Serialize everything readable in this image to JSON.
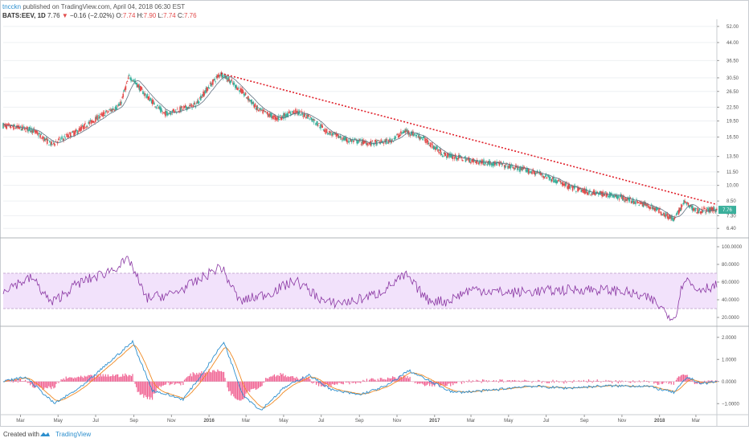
{
  "header": {
    "author": "tncckn",
    "published": "published on TradingView.com, April 04, 2018 06:30 EST",
    "symbol": "BATS:EEV, 1D",
    "price": "7.76",
    "down_arrow": "▼",
    "change": "−0.16 (−2.02%)",
    "o_label": "O:",
    "o_value": "7.74",
    "h_label": "H:",
    "h_value": "7.90",
    "l_label": "L:",
    "l_value": "7.74",
    "c_label": "C:",
    "c_value": "7.76"
  },
  "footer": {
    "created_with": "Created with",
    "brand": "TradingView"
  },
  "price_axis": {
    "ticks": [
      "52.00",
      "44.00",
      "36.50",
      "30.50",
      "26.50",
      "22.50",
      "19.50",
      "16.50",
      "13.50",
      "11.50",
      "10.00",
      "8.50",
      "7.30",
      "6.40"
    ],
    "last_price": "7.76"
  },
  "rsi_axis": {
    "ticks": [
      "100.0000",
      "80.0000",
      "60.0000",
      "40.0000",
      "20.0000"
    ]
  },
  "macd_axis": {
    "ticks": [
      "2.0000",
      "1.0000",
      "0.0000",
      "−1.0000"
    ]
  },
  "time_axis": {
    "labels": [
      "Mar",
      "May",
      "Jul",
      "Sep",
      "Nov",
      "2016",
      "Mar",
      "May",
      "Jul",
      "Sep",
      "Nov",
      "2017",
      "Mar",
      "May",
      "Jul",
      "Sep",
      "Nov",
      "2018",
      "Mar"
    ]
  },
  "colors": {
    "up": "#3bb09c",
    "down": "#e24c4c",
    "trendline": "#e0202a",
    "sma": "#607080",
    "rsi": "#8a37a3",
    "rsi_band": "#f2e2fb",
    "macd": "#2d8fce",
    "signal": "#f08a24",
    "hist": "#f06292",
    "grid": "#eef0f3",
    "axis_text": "#555555"
  },
  "chart_data": [
    {
      "type": "candlestick",
      "title": "BATS:EEV, 1D",
      "y_scale": "log",
      "ylim": [
        5.8,
        56
      ],
      "key_points": [
        {
          "x": "2015-02-01",
          "y": 18.6
        },
        {
          "x": "2015-03-20",
          "y": 17.8
        },
        {
          "x": "2015-04-20",
          "y": 15.3
        },
        {
          "x": "2015-06-01",
          "y": 17.5
        },
        {
          "x": "2015-07-15",
          "y": 21.0
        },
        {
          "x": "2015-08-10",
          "y": 23.0
        },
        {
          "x": "2015-08-25",
          "y": 31.0
        },
        {
          "x": "2015-09-20",
          "y": 25.5
        },
        {
          "x": "2015-10-20",
          "y": 21.0
        },
        {
          "x": "2015-12-10",
          "y": 23.0
        },
        {
          "x": "2016-01-20",
          "y": 32.0
        },
        {
          "x": "2016-02-20",
          "y": 27.0
        },
        {
          "x": "2016-03-20",
          "y": 22.0
        },
        {
          "x": "2016-04-20",
          "y": 20.0
        },
        {
          "x": "2016-05-20",
          "y": 21.5
        },
        {
          "x": "2016-06-10",
          "y": 20.5
        },
        {
          "x": "2016-07-10",
          "y": 17.5
        },
        {
          "x": "2016-08-10",
          "y": 16.0
        },
        {
          "x": "2016-09-20",
          "y": 15.5
        },
        {
          "x": "2016-10-20",
          "y": 15.8
        },
        {
          "x": "2016-11-15",
          "y": 17.6
        },
        {
          "x": "2016-12-10",
          "y": 16.5
        },
        {
          "x": "2017-01-15",
          "y": 13.8
        },
        {
          "x": "2017-03-10",
          "y": 12.8
        },
        {
          "x": "2017-04-15",
          "y": 12.5
        },
        {
          "x": "2017-06-20",
          "y": 11.3
        },
        {
          "x": "2017-08-10",
          "y": 9.8
        },
        {
          "x": "2017-09-10",
          "y": 9.3
        },
        {
          "x": "2017-10-20",
          "y": 9.0
        },
        {
          "x": "2017-12-20",
          "y": 8.0
        },
        {
          "x": "2018-01-25",
          "y": 7.0
        },
        {
          "x": "2018-02-10",
          "y": 8.4
        },
        {
          "x": "2018-03-01",
          "y": 7.7
        },
        {
          "x": "2018-04-04",
          "y": 7.76
        }
      ],
      "trendline": [
        {
          "x": "2016-01-20",
          "y": 32.0
        },
        {
          "x": "2018-04-04",
          "y": 8.2
        }
      ]
    },
    {
      "type": "line",
      "title": "RSI",
      "ylim": [
        10,
        110
      ],
      "band": [
        30,
        70
      ],
      "key_points": [
        {
          "x": "2015-02-01",
          "y": 52
        },
        {
          "x": "2015-03-20",
          "y": 65
        },
        {
          "x": "2015-04-20",
          "y": 36
        },
        {
          "x": "2015-06-01",
          "y": 58
        },
        {
          "x": "2015-07-15",
          "y": 70
        },
        {
          "x": "2015-08-25",
          "y": 85
        },
        {
          "x": "2015-09-20",
          "y": 42
        },
        {
          "x": "2015-11-01",
          "y": 46
        },
        {
          "x": "2015-12-10",
          "y": 60
        },
        {
          "x": "2016-01-20",
          "y": 78
        },
        {
          "x": "2016-02-20",
          "y": 38
        },
        {
          "x": "2016-04-10",
          "y": 48
        },
        {
          "x": "2016-05-20",
          "y": 62
        },
        {
          "x": "2016-07-10",
          "y": 36
        },
        {
          "x": "2016-08-20",
          "y": 38
        },
        {
          "x": "2016-10-01",
          "y": 47
        },
        {
          "x": "2016-11-15",
          "y": 68
        },
        {
          "x": "2016-12-20",
          "y": 40
        },
        {
          "x": "2017-01-20",
          "y": 38
        },
        {
          "x": "2017-03-01",
          "y": 52
        },
        {
          "x": "2017-05-01",
          "y": 48
        },
        {
          "x": "2017-07-01",
          "y": 50
        },
        {
          "x": "2017-09-01",
          "y": 52
        },
        {
          "x": "2017-11-01",
          "y": 50
        },
        {
          "x": "2017-12-20",
          "y": 40
        },
        {
          "x": "2018-01-25",
          "y": 18
        },
        {
          "x": "2018-02-10",
          "y": 66
        },
        {
          "x": "2018-03-01",
          "y": 52
        },
        {
          "x": "2018-04-04",
          "y": 56
        }
      ]
    },
    {
      "type": "line",
      "title": "MACD",
      "ylim": [
        -1.5,
        2.5
      ],
      "key_points": [
        {
          "x": "2015-02-01",
          "y": 0.0
        },
        {
          "x": "2015-03-10",
          "y": 0.2
        },
        {
          "x": "2015-04-25",
          "y": -1.0
        },
        {
          "x": "2015-06-10",
          "y": -0.2
        },
        {
          "x": "2015-07-20",
          "y": 0.8
        },
        {
          "x": "2015-08-30",
          "y": 1.8
        },
        {
          "x": "2015-10-01",
          "y": -0.4
        },
        {
          "x": "2015-11-20",
          "y": -0.8
        },
        {
          "x": "2015-12-20",
          "y": 0.3
        },
        {
          "x": "2016-01-25",
          "y": 1.8
        },
        {
          "x": "2016-02-25",
          "y": -0.6
        },
        {
          "x": "2016-03-25",
          "y": -1.3
        },
        {
          "x": "2016-05-01",
          "y": -0.3
        },
        {
          "x": "2016-06-10",
          "y": 0.3
        },
        {
          "x": "2016-07-20",
          "y": -0.4
        },
        {
          "x": "2016-09-01",
          "y": -0.6
        },
        {
          "x": "2016-10-15",
          "y": -0.2
        },
        {
          "x": "2016-11-20",
          "y": 0.5
        },
        {
          "x": "2016-12-25",
          "y": 0.0
        },
        {
          "x": "2017-02-01",
          "y": -0.5
        },
        {
          "x": "2017-04-01",
          "y": -0.4
        },
        {
          "x": "2017-06-01",
          "y": -0.2
        },
        {
          "x": "2017-08-01",
          "y": -0.3
        },
        {
          "x": "2017-10-01",
          "y": -0.2
        },
        {
          "x": "2017-12-10",
          "y": -0.2
        },
        {
          "x": "2018-01-25",
          "y": -0.5
        },
        {
          "x": "2018-02-15",
          "y": 0.2
        },
        {
          "x": "2018-03-10",
          "y": -0.1
        },
        {
          "x": "2018-04-04",
          "y": 0.0
        }
      ]
    }
  ]
}
